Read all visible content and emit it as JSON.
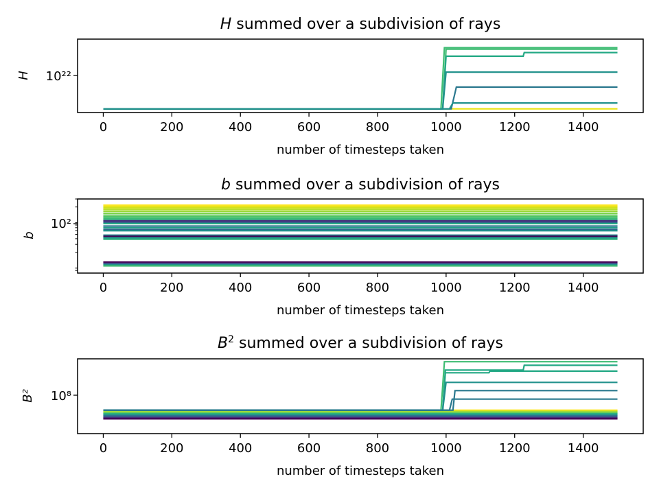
{
  "chart_data": [
    {
      "type": "line",
      "title": "H summed over a subdivision of rays",
      "title_var": "H",
      "title_rest": " summed over a subdivision of rays",
      "xlabel": "number of timesteps taken",
      "ylabel": "H",
      "yscale": "log",
      "xlim": [
        -75,
        1575
      ],
      "x_ticks": [
        0,
        200,
        400,
        600,
        800,
        1000,
        1200,
        1400
      ],
      "y_tick_label": "10²²",
      "y_tick_value": 1e+22,
      "ylim": [
        1e+19,
        1e+25
      ],
      "colormap": "viridis",
      "series": [
        {
          "color": "#e8e419",
          "x": [
            0,
            1500
          ],
          "y": [
            2e+19,
            2e+19
          ]
        },
        {
          "color": "#3fbc73",
          "x": [
            0,
            985,
            995,
            1500
          ],
          "y": [
            2e+19,
            2e+19,
            2e+24,
            2e+24
          ]
        },
        {
          "color": "#3fbc73",
          "x": [
            0,
            990,
            1000,
            1500
          ],
          "y": [
            2e+19,
            2e+19,
            1.5e+24,
            1.5e+24
          ]
        },
        {
          "color": "#22a884",
          "x": [
            0,
            990,
            1000,
            1225,
            1228,
            1500
          ],
          "y": [
            2e+19,
            2e+19,
            4e+23,
            4e+23,
            8e+23,
            8e+23
          ]
        },
        {
          "color": "#21918c",
          "x": [
            0,
            990,
            1000,
            1500
          ],
          "y": [
            2e+19,
            2e+19,
            2e+22,
            2e+22
          ]
        },
        {
          "color": "#2a788e",
          "x": [
            0,
            1015,
            1025,
            1030,
            1500
          ],
          "y": [
            2e+19,
            2e+19,
            3e+20,
            1.2e+21,
            1.2e+21
          ]
        },
        {
          "color": "#21918c",
          "x": [
            0,
            1010,
            1020,
            1500
          ],
          "y": [
            2e+19,
            2e+19,
            6e+19,
            6e+19
          ]
        }
      ]
    },
    {
      "type": "line",
      "title": "b summed over a subdivision of rays",
      "title_var": "b",
      "title_rest": " summed over a subdivision of rays",
      "xlabel": "number of timesteps taken",
      "ylabel": "b",
      "yscale": "log",
      "xlim": [
        -75,
        1575
      ],
      "x_ticks": [
        0,
        200,
        400,
        600,
        800,
        1000,
        1200,
        1400
      ],
      "y_tick_label": "10²",
      "y_tick_value": 100,
      "ylim": [
        7,
        300
      ],
      "colormap": "viridis",
      "constant_series": [
        {
          "color": "#fde725",
          "y": 220
        },
        {
          "color": "#e8e419",
          "y": 205
        },
        {
          "color": "#d0e11c",
          "y": 190
        },
        {
          "color": "#b5de2b",
          "y": 175
        },
        {
          "color": "#9bd93c",
          "y": 160
        },
        {
          "color": "#7fd34e",
          "y": 145
        },
        {
          "color": "#65cb5e",
          "y": 132
        },
        {
          "color": "#4ec36b",
          "y": 121
        },
        {
          "color": "#3bbb75",
          "y": 112
        },
        {
          "color": "#2db27d",
          "y": 104
        },
        {
          "color": "#472d7b",
          "y": 99
        },
        {
          "color": "#3b528b",
          "y": 92
        },
        {
          "color": "#22a884",
          "y": 86
        },
        {
          "color": "#2c728e",
          "y": 76
        },
        {
          "color": "#1fa188",
          "y": 70
        },
        {
          "color": "#31688e",
          "y": 64
        },
        {
          "color": "#21918c",
          "y": 60
        },
        {
          "color": "#26828e",
          "y": 48
        },
        {
          "color": "#440154",
          "y": 45
        },
        {
          "color": "#1f988b",
          "y": 42
        },
        {
          "color": "#2db27d",
          "y": 39
        },
        {
          "color": "#440154",
          "y": 12.2
        },
        {
          "color": "#3e4989",
          "y": 11.4
        },
        {
          "color": "#21918c",
          "y": 10.7
        },
        {
          "color": "#3fbc73",
          "y": 10.1
        }
      ]
    },
    {
      "type": "line",
      "title": "B² summed over a subdivision of rays",
      "title_var": "B",
      "title_sup": "2",
      "title_rest": " summed over a subdivision of rays",
      "xlabel": "number of timesteps taken",
      "ylabel": "B²",
      "yscale": "log",
      "xlim": [
        -75,
        1575
      ],
      "x_ticks": [
        0,
        200,
        400,
        600,
        800,
        1000,
        1200,
        1400
      ],
      "y_tick_label": "10⁸",
      "y_tick_value": 100000000.0,
      "ylim": [
        1000000.0,
        10000000000.0
      ],
      "colormap": "viridis",
      "constant_series": [
        {
          "color": "#fde725",
          "y": 18000000.0
        },
        {
          "color": "#d0e11c",
          "y": 16000000.0
        },
        {
          "color": "#9bd93c",
          "y": 14500000.0
        },
        {
          "color": "#65cb5e",
          "y": 13000000.0
        },
        {
          "color": "#2db27d",
          "y": 11500000.0
        },
        {
          "color": "#21918c",
          "y": 10000000.0
        },
        {
          "color": "#2c728e",
          "y": 8800000.0
        },
        {
          "color": "#3b528b",
          "y": 7800000.0
        },
        {
          "color": "#472d7b",
          "y": 6900000.0
        },
        {
          "color": "#440154",
          "y": 6200000.0
        }
      ],
      "series": [
        {
          "color": "#3fbc73",
          "x": [
            0,
            985,
            995,
            1500
          ],
          "y": [
            18000000.0,
            18000000.0,
            7000000000.0,
            7000000000.0
          ]
        },
        {
          "color": "#22a884",
          "x": [
            0,
            990,
            998,
            1225,
            1228,
            1500
          ],
          "y": [
            18000000.0,
            18000000.0,
            2500000000.0,
            2500000000.0,
            4500000000.0,
            4500000000.0
          ]
        },
        {
          "color": "#22a884",
          "x": [
            0,
            990,
            998,
            1125,
            1128,
            1500
          ],
          "y": [
            18000000.0,
            18000000.0,
            1800000000.0,
            1800000000.0,
            2200000000.0,
            2200000000.0
          ]
        },
        {
          "color": "#21918c",
          "x": [
            0,
            990,
            1000,
            1500
          ],
          "y": [
            18000000.0,
            18000000.0,
            550000000.0,
            550000000.0
          ]
        },
        {
          "color": "#2a788e",
          "x": [
            0,
            1020,
            1026,
            1500
          ],
          "y": [
            18000000.0,
            18000000.0,
            200000000.0,
            200000000.0
          ]
        },
        {
          "color": "#2a788e",
          "x": [
            0,
            1010,
            1018,
            1500
          ],
          "y": [
            18000000.0,
            18000000.0,
            70000000.0,
            70000000.0
          ]
        }
      ]
    }
  ]
}
